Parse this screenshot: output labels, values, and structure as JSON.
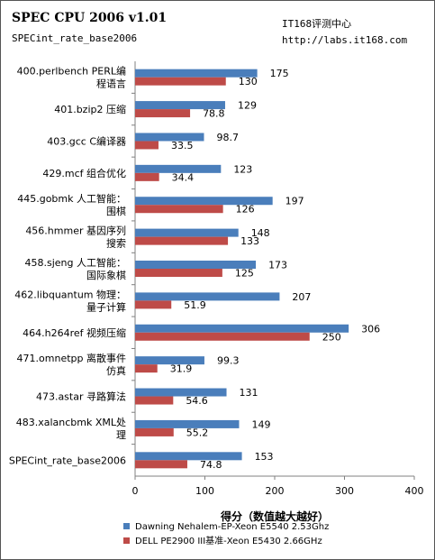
{
  "header": {
    "title": "SPEC CPU 2006 v1.01",
    "subtitle": "SPECint_rate_base2006",
    "source_name": "IT168评测中心",
    "source_url": "http://labs.it168.com"
  },
  "colors": {
    "series_1": "#4a7ebb",
    "series_2": "#be4b48",
    "axis": "#808080"
  },
  "chart_data": {
    "type": "bar",
    "orientation": "horizontal",
    "categories": [
      [
        "400.perlbench PERL编",
        "程语言"
      ],
      [
        "401.bzip2 压缩"
      ],
      [
        "403.gcc C编译器"
      ],
      [
        "429.mcf 组合优化"
      ],
      [
        "445.gobmk 人工智能：",
        "围棋"
      ],
      [
        "456.hmmer 基因序列",
        "搜索"
      ],
      [
        "458.sjeng 人工智能：",
        "国际象棋"
      ],
      [
        "462.libquantum 物理：",
        "量子计算"
      ],
      [
        "464.h264ref 视频压缩"
      ],
      [
        "471.omnetpp 离散事件",
        "仿真"
      ],
      [
        "473.astar 寻路算法"
      ],
      [
        "483.xalancbmk XML处",
        "理"
      ],
      [
        "SPECint_rate_base2006"
      ]
    ],
    "series": [
      {
        "name": "Dawning Nehalem-EP-Xeon  E5540 2.53Ghz",
        "values": [
          175,
          129,
          98.7,
          123,
          197,
          148,
          173,
          207,
          306,
          99.3,
          131,
          149,
          153
        ]
      },
      {
        "name": "DELL PE2900 III基准-Xeon  E5430 2.66GHz",
        "values": [
          130,
          78.8,
          33.5,
          34.4,
          126,
          133,
          125,
          51.9,
          250,
          31.9,
          54.6,
          55.2,
          74.8
        ]
      }
    ],
    "xlabel": "得分（数值越大越好）",
    "xlim": [
      0,
      400
    ],
    "xticks": [
      0,
      100,
      200,
      300,
      400
    ],
    "grid": false,
    "legend": "bottom"
  }
}
